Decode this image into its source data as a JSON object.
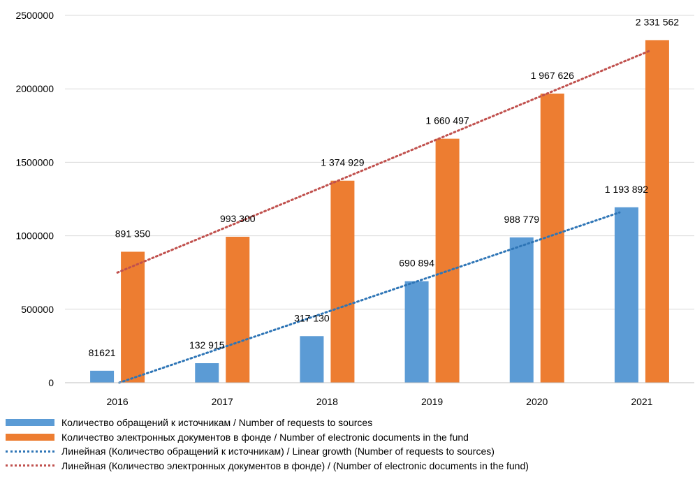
{
  "chart_data": {
    "type": "bar",
    "categories": [
      "2016",
      "2017",
      "2018",
      "2019",
      "2020",
      "2021"
    ],
    "series": [
      {
        "name": "Количество обращений к источникам /  Number of requests to sources",
        "values": [
          81621,
          132915,
          317130,
          690894,
          988779,
          1193892
        ],
        "labels": [
          "81621",
          "132 915",
          "317 130",
          "690 894",
          "988 779",
          "1 193 892"
        ],
        "color": "#5b9bd5"
      },
      {
        "name": "Количество электронных документов в фонде / Number of electronic documents in the fund",
        "values": [
          891350,
          993300,
          1374929,
          1660497,
          1967626,
          2331562
        ],
        "labels": [
          "891 350",
          "993 300",
          "1 374 929",
          "1 660 497",
          "1 967 626",
          "2 331 562"
        ],
        "color": "#ed7d31"
      }
    ],
    "trendlines": [
      {
        "name": "Линейная (Количество обращений к источникам) / Linear growth (Number of requests to sources)",
        "type": "linear",
        "series": 0,
        "color": "#2e75b6"
      },
      {
        "name": "Линейная (Количество электронных документов в фонде) / (Number of electronic documents in the fund)",
        "type": "linear",
        "series": 1,
        "color": "#c0504d"
      }
    ],
    "ylim": [
      0,
      2500000
    ],
    "yticks": [
      "0",
      "500000",
      "1000000",
      "1500000",
      "2000000",
      "2500000"
    ],
    "grid": true,
    "legend": "bottom"
  }
}
